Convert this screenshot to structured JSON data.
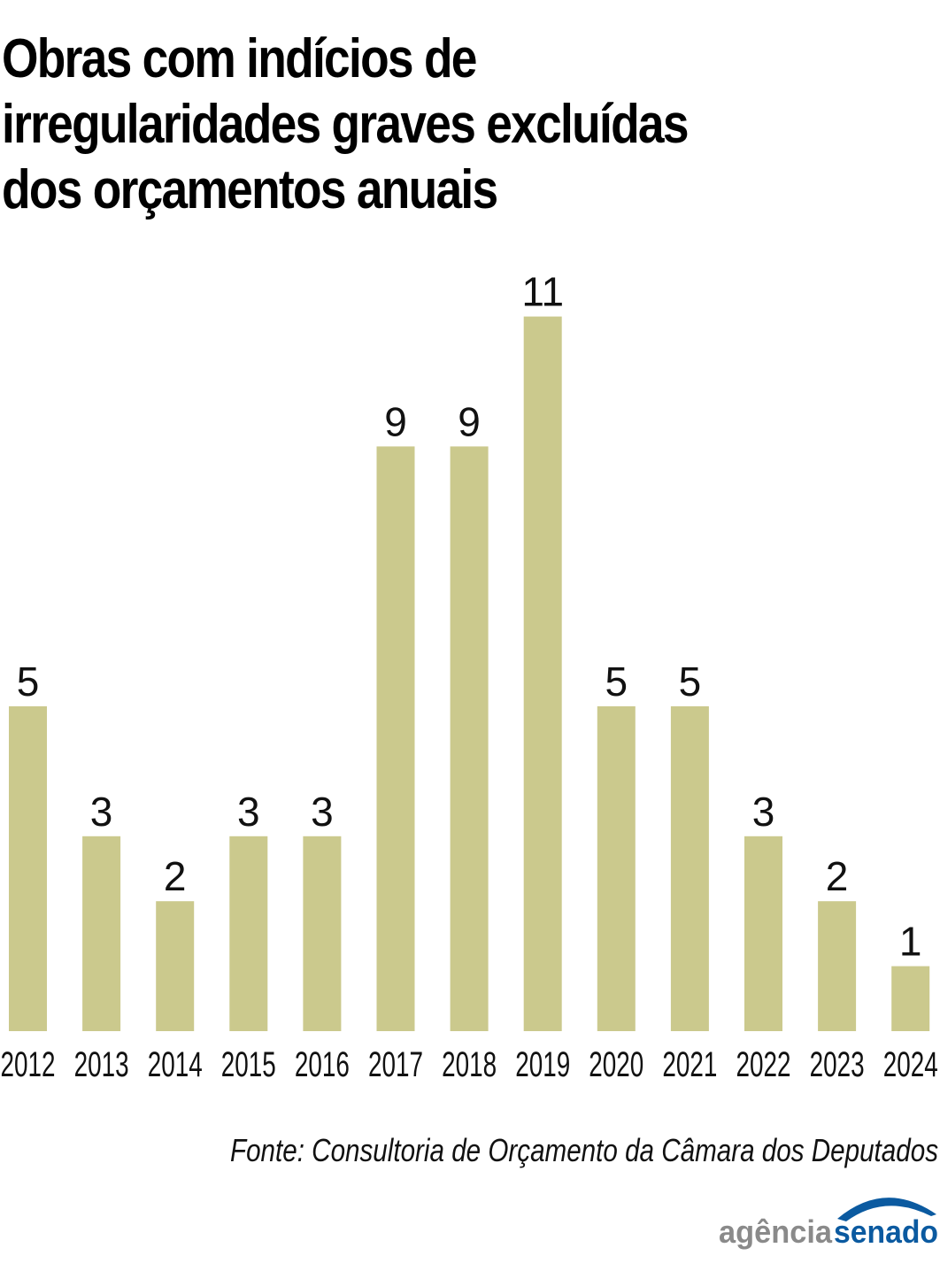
{
  "chart_data": {
    "type": "bar",
    "title_lines": [
      "Obras com indícios de",
      "irregularidades graves excluídas",
      "dos orçamentos anuais"
    ],
    "categories": [
      "2012",
      "2013",
      "2014",
      "2015",
      "2016",
      "2017",
      "2018",
      "2019",
      "2020",
      "2021",
      "2022",
      "2023",
      "2024"
    ],
    "values": [
      5,
      3,
      2,
      3,
      3,
      9,
      9,
      11,
      5,
      5,
      3,
      2,
      1
    ],
    "xlabel": "",
    "ylabel": "",
    "ylim": [
      0,
      11
    ],
    "grid": false,
    "source": "Fonte: Consultoria de Orçamento da Câmara dos Deputados",
    "bar_color": "#cbc98d"
  },
  "logo": {
    "part1": "agência",
    "part2": "senado",
    "color1": "#8a8a8a",
    "color2": "#0b5aa0"
  }
}
